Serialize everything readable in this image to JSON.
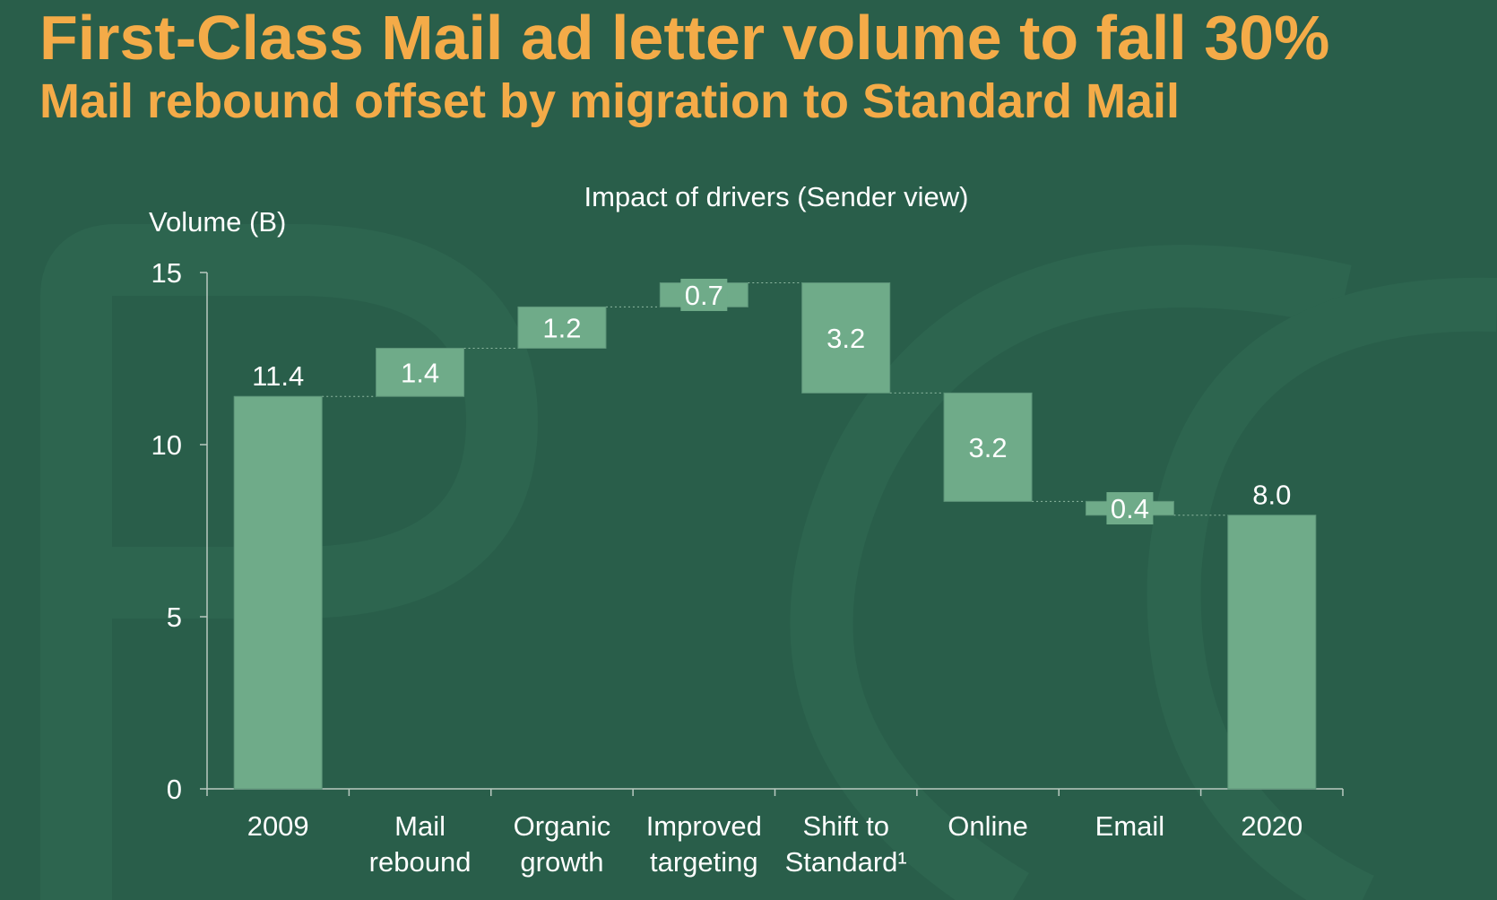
{
  "header": {
    "title": "First-Class Mail ad letter volume to fall 30%",
    "subtitle": "Mail rebound offset by migration to Standard Mail"
  },
  "chart_data": {
    "type": "bar",
    "subtype": "waterfall",
    "title": "Impact of drivers (Sender view)",
    "ylabel": "Volume (B)",
    "xlabel": "",
    "ylim": [
      0,
      15
    ],
    "yticks": [
      "0",
      "5",
      "10",
      "15"
    ],
    "grid": false,
    "categories": [
      [
        "2009"
      ],
      [
        "Mail",
        "rebound"
      ],
      [
        "Organic",
        "growth"
      ],
      [
        "Improved",
        "targeting"
      ],
      [
        "Shift to",
        "Standard¹"
      ],
      [
        "Online"
      ],
      [
        "Email"
      ],
      [
        "2020"
      ]
    ],
    "bars": [
      {
        "kind": "total",
        "start": 0,
        "end": 11.4,
        "label": "11.4"
      },
      {
        "kind": "increase",
        "start": 11.4,
        "end": 12.8,
        "label": "1.4"
      },
      {
        "kind": "increase",
        "start": 12.8,
        "end": 14.0,
        "label": "1.2"
      },
      {
        "kind": "increase",
        "start": 14.0,
        "end": 14.7,
        "label": "0.7"
      },
      {
        "kind": "decrease",
        "start": 14.7,
        "end": 11.5,
        "label": "3.2"
      },
      {
        "kind": "decrease",
        "start": 11.5,
        "end": 8.35,
        "label": "3.2"
      },
      {
        "kind": "decrease",
        "start": 8.35,
        "end": 7.95,
        "label": "0.4"
      },
      {
        "kind": "total",
        "start": 0,
        "end": 7.95,
        "label": "8.0"
      }
    ],
    "colors": {
      "bar": "#6fab89",
      "background": "#295e4a",
      "title": "#f4ab48",
      "text": "#ffffff",
      "axis": "#b9c9c0"
    }
  }
}
